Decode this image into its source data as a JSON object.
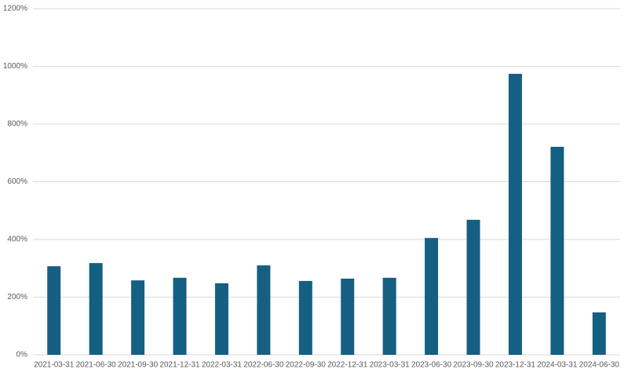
{
  "chart_data": {
    "type": "bar",
    "categories": [
      "2021-03-31",
      "2021-06-30",
      "2021-09-30",
      "2021-12-31",
      "2022-03-31",
      "2022-06-30",
      "2022-09-30",
      "2022-12-31",
      "2023-03-31",
      "2023-06-30",
      "2023-09-30",
      "2023-12-31",
      "2024-03-31",
      "2024-06-30"
    ],
    "values": [
      307,
      318,
      258,
      267,
      248,
      310,
      256,
      264,
      267,
      405,
      468,
      974,
      721,
      147
    ],
    "color": "#155f82",
    "ylim": [
      0,
      1200
    ],
    "yticks": [
      {
        "value": 0,
        "label": "0%"
      },
      {
        "value": 200,
        "label": "200%"
      },
      {
        "value": 400,
        "label": "400%"
      },
      {
        "value": 600,
        "label": "600%"
      },
      {
        "value": 800,
        "label": "800%"
      },
      {
        "value": 1000,
        "label": "1000%"
      },
      {
        "value": 1200,
        "label": "1200%"
      }
    ],
    "grid": true
  }
}
